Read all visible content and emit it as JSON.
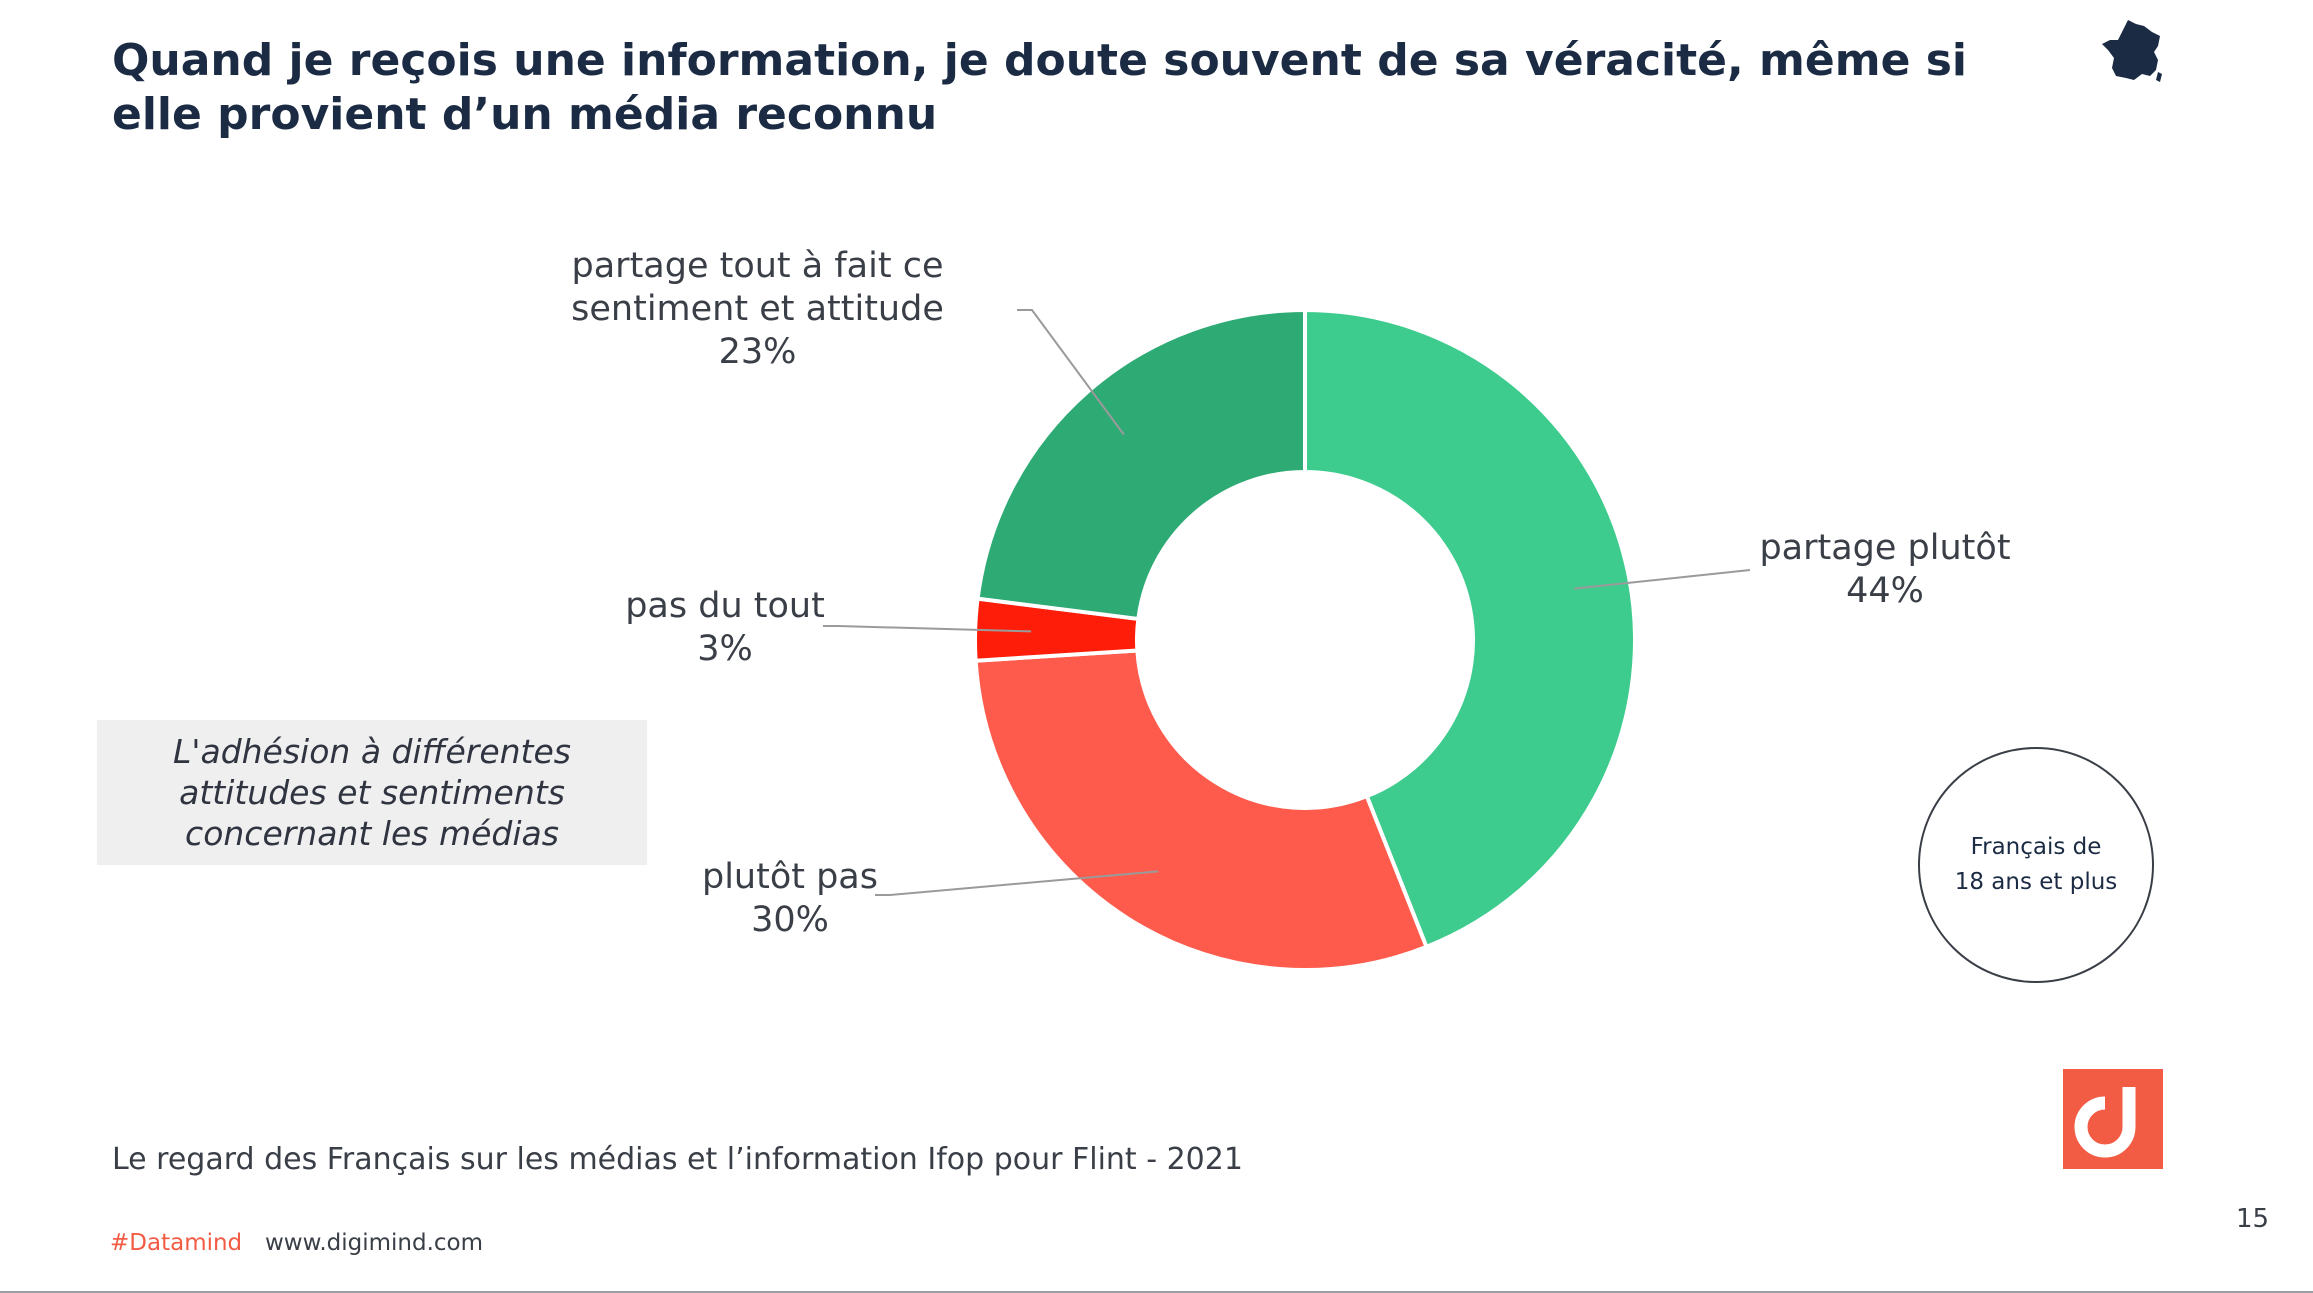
{
  "title": "Quand je reçois une information, je doute souvent de sa véracité, même si elle provient d’un média reconnu",
  "callout": "L'adhésion à différentes attitudes et sentiments concernant les médias",
  "population": {
    "line1": "Français de",
    "line2": "18 ans et plus"
  },
  "source": "Le regard des Français sur les médias et l’information  Ifop pour Flint - 2021",
  "footer": {
    "hashtag": "#Datamind",
    "website": "www.digimind.com",
    "page_number": "15"
  },
  "icons": {
    "flag": "france-map-icon",
    "logo": "digimind-logo-icon"
  },
  "colors": {
    "partage_plutot": "#3ecb8e",
    "partage_tout_a_fait": "#2eaa74",
    "pas_du_tout": "#fe1d08",
    "plutot_pas": "#fe5b4d",
    "title": "#1c2b44",
    "accent": "#f25c45"
  },
  "chart_data": {
    "type": "pie",
    "donut": true,
    "slices": [
      {
        "label": "partage plutôt",
        "value": 44,
        "display": "44%",
        "color": "#3ecb8e"
      },
      {
        "label": "plutôt pas",
        "value": 30,
        "display": "30%",
        "color": "#fe5b4d"
      },
      {
        "label": "pas du tout",
        "value": 3,
        "display": "3%",
        "color": "#fe1d08"
      },
      {
        "label": "partage tout à fait ce sentiment et attitude",
        "value": 23,
        "display": "23%",
        "color": "#2eaa74"
      }
    ]
  }
}
